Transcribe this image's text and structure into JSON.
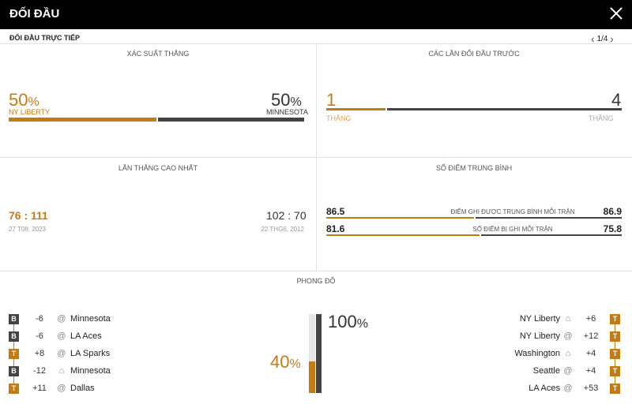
{
  "header": {
    "title": "ĐỐI ĐẦU",
    "close_icon": "close-icon"
  },
  "subheader": {
    "title": "ĐỐI ĐẦU TRỰC TIẾP",
    "pager": "1/4",
    "prev_icon": "chevron-left-icon",
    "next_icon": "chevron-right-icon"
  },
  "colors": {
    "home": "#c67a12",
    "away": "#444444"
  },
  "win_prob": {
    "title": "XÁC SUẤT THẮNG",
    "home_value": "50",
    "away_value": "50",
    "unit": "%",
    "home_team": "NY LIBERTY",
    "away_team": "MINNESOTA",
    "home_fraction": 0.5
  },
  "previous": {
    "title": "CÁC LẦN ĐỐI ĐẦU TRƯỚC",
    "home_wins": "1",
    "away_wins": "4",
    "home_label": "THẮNG",
    "away_label": "THẮNG",
    "home_fraction": 0.2
  },
  "biggest_win": {
    "title": "LẦN THẮNG CAO NHẤT",
    "home_score_a": "76",
    "sep": ":",
    "home_score_b": "111",
    "home_date": "27 T08, 2023",
    "away_score_a": "102",
    "away_score_b": "70",
    "away_date": "22 THG6, 2012"
  },
  "avg_points": {
    "title": "SỐ ĐIỂM TRUNG BÌNH",
    "rows": [
      {
        "label": "ĐIỂM GHI ĐƯỢC TRUNG BÌNH MỖI TRẬN",
        "home": "86.5",
        "away": "86.9",
        "home_fraction": 0.499
      },
      {
        "label": "SỐ ĐIỂM BỊ GHI MỖI TRẬN",
        "home": "81.6",
        "away": "75.8",
        "home_fraction": 0.518
      }
    ]
  },
  "form": {
    "title": "PHONG ĐỘ",
    "home_pct": "40",
    "away_pct": "100",
    "unit": "%",
    "home_fraction": 0.4,
    "away_fraction": 1.0,
    "home_games": [
      {
        "result": "B",
        "diff": "-6",
        "venue_icon": "at-icon",
        "venue": "@",
        "opponent": "Minnesota"
      },
      {
        "result": "B",
        "diff": "-6",
        "venue_icon": "at-icon",
        "venue": "@",
        "opponent": "LA Aces"
      },
      {
        "result": "T",
        "diff": "+8",
        "venue_icon": "at-icon",
        "venue": "@",
        "opponent": "LA Sparks"
      },
      {
        "result": "B",
        "diff": "-12",
        "venue_icon": "home-icon",
        "venue": "⌂",
        "opponent": "Minnesota"
      },
      {
        "result": "T",
        "diff": "+11",
        "venue_icon": "at-icon",
        "venue": "@",
        "opponent": "Dallas"
      }
    ],
    "away_games": [
      {
        "result": "T",
        "diff": "+6",
        "venue_icon": "home-icon",
        "venue": "⌂",
        "opponent": "NY Liberty"
      },
      {
        "result": "T",
        "diff": "+12",
        "venue_icon": "at-icon",
        "venue": "@",
        "opponent": "NY Liberty"
      },
      {
        "result": "T",
        "diff": "+4",
        "venue_icon": "home-icon",
        "venue": "⌂",
        "opponent": "Washington"
      },
      {
        "result": "T",
        "diff": "+4",
        "venue_icon": "at-icon",
        "venue": "@",
        "opponent": "Seattle"
      },
      {
        "result": "T",
        "diff": "+53",
        "venue_icon": "at-icon",
        "venue": "@",
        "opponent": "LA Aces"
      }
    ]
  }
}
